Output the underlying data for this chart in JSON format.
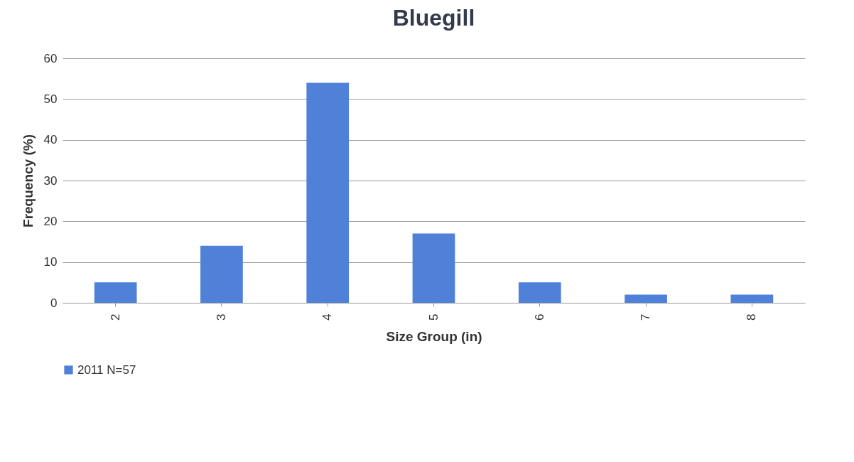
{
  "chart_data": {
    "type": "bar",
    "title": "Bluegill",
    "xlabel": "Size Group (in)",
    "ylabel": "Frequency (%)",
    "categories": [
      "2",
      "3",
      "4",
      "5",
      "6",
      "7",
      "8"
    ],
    "series": [
      {
        "name": "2011 N=57",
        "color": "#4f81d8",
        "values": [
          5,
          14,
          54,
          17,
          5,
          2,
          2
        ]
      }
    ],
    "ylim": [
      0,
      60
    ],
    "yticks": [
      0,
      10,
      20,
      30,
      40,
      50,
      60
    ],
    "grid": "y",
    "legend": "bottom"
  }
}
